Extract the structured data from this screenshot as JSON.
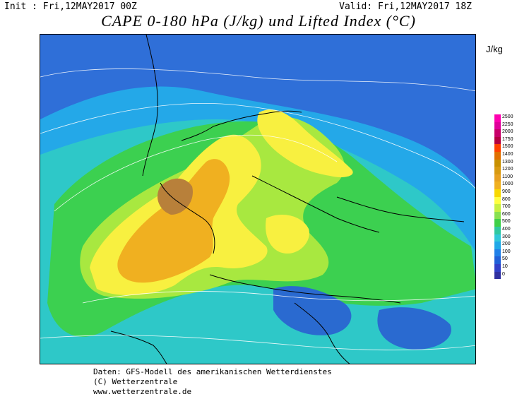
{
  "header": {
    "init": "Init : Fri,12MAY2017 00Z",
    "valid": "Valid: Fri,12MAY2017 18Z",
    "title": "CAPE 0-180 hPa (J/kg) und Lifted Index (°C)"
  },
  "legend": {
    "unit": "J/kg",
    "levels": [
      "2500",
      "2250",
      "2000",
      "1750",
      "1500",
      "1400",
      "1300",
      "1200",
      "1100",
      "1000",
      "900",
      "800",
      "700",
      "600",
      "500",
      "400",
      "300",
      "200",
      "100",
      "50",
      "10",
      "0"
    ],
    "colors": [
      "#ff00b0",
      "#e0009a",
      "#c8006a",
      "#b40040",
      "#ff4000",
      "#e07000",
      "#c89000",
      "#d89a10",
      "#e8a020",
      "#f0b020",
      "#f8d800",
      "#ffff40",
      "#c8f040",
      "#88e050",
      "#40d048",
      "#30c8a0",
      "#30c8d8",
      "#20a8e8",
      "#2080e8",
      "#2060d8",
      "#3040c8",
      "#3030a0"
    ]
  },
  "credits": {
    "line1": "Daten: GFS-Modell des amerikanischen Wetterdienstes",
    "line2": "(C) Wetterzentrale",
    "line3": "www.wetterzentrale.de"
  }
}
